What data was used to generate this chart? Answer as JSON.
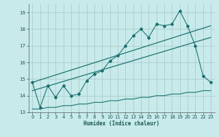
{
  "xlabel": "Humidex (Indice chaleur)",
  "background_color": "#c8eaea",
  "grid_color": "#aacccc",
  "line_color": "#1a7070",
  "xlim": [
    -0.5,
    23.5
  ],
  "ylim": [
    13,
    19.5
  ],
  "yticks": [
    13,
    14,
    15,
    16,
    17,
    18,
    19
  ],
  "xticks": [
    0,
    1,
    2,
    3,
    4,
    5,
    6,
    7,
    8,
    9,
    10,
    11,
    12,
    13,
    14,
    15,
    16,
    17,
    18,
    19,
    20,
    21,
    22,
    23
  ],
  "series1_x": [
    0,
    1,
    2,
    3,
    4,
    5,
    6,
    7,
    8,
    9,
    10,
    11,
    12,
    13,
    14,
    15,
    16,
    17,
    18,
    19,
    20,
    21,
    22,
    23
  ],
  "series1_y": [
    14.8,
    13.3,
    14.6,
    13.9,
    14.6,
    14.0,
    14.1,
    14.9,
    15.3,
    15.5,
    16.1,
    16.4,
    17.0,
    17.6,
    18.0,
    17.5,
    18.3,
    18.2,
    18.3,
    19.1,
    18.2,
    17.0,
    15.2,
    14.8
  ],
  "series2_x": [
    0,
    23
  ],
  "series2_y": [
    14.8,
    18.2
  ],
  "series3_x": [
    0,
    23
  ],
  "series3_y": [
    14.3,
    17.5
  ],
  "series4_x": [
    0,
    1,
    2,
    3,
    4,
    5,
    6,
    7,
    8,
    9,
    10,
    11,
    12,
    13,
    14,
    15,
    16,
    17,
    18,
    19,
    20,
    21,
    22,
    23
  ],
  "series4_y": [
    13.2,
    13.2,
    13.3,
    13.3,
    13.4,
    13.4,
    13.5,
    13.5,
    13.6,
    13.6,
    13.7,
    13.7,
    13.8,
    13.8,
    13.9,
    13.9,
    14.0,
    14.0,
    14.1,
    14.1,
    14.2,
    14.2,
    14.3,
    14.3
  ],
  "xlabel_fontsize": 5.5,
  "tick_fontsize": 5.0,
  "marker_size": 2.0
}
